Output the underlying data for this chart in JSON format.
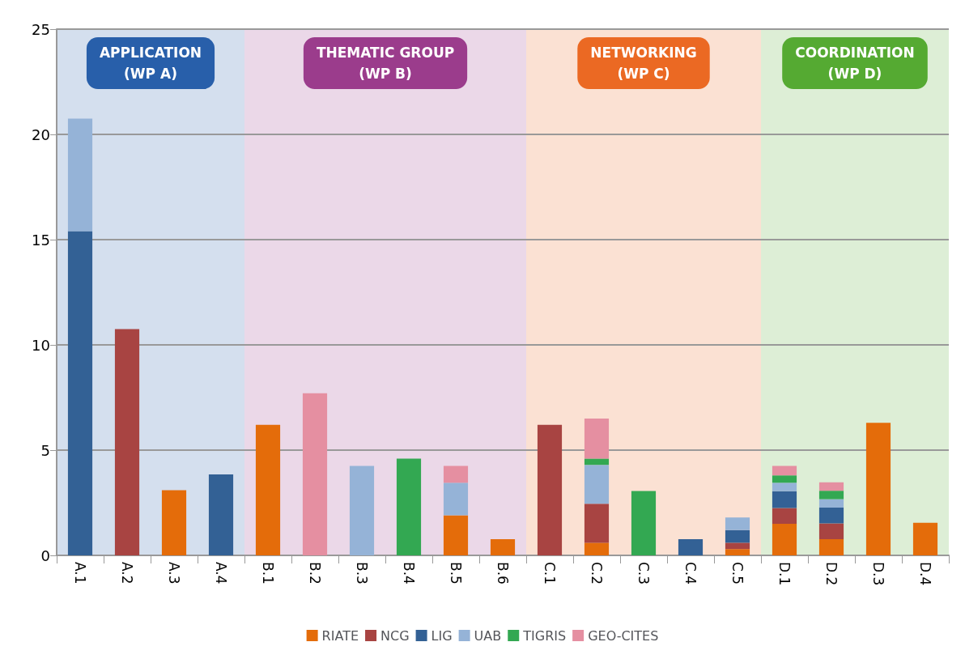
{
  "chart_data": {
    "type": "bar",
    "stacked": true,
    "categories": [
      "A.1",
      "A.2",
      "A.3",
      "A.4",
      "B.1",
      "B.2",
      "B.3",
      "B.4",
      "B.5",
      "B.6",
      "C.1",
      "C.2",
      "C.3",
      "C.4",
      "C.5",
      "D.1",
      "D.2",
      "D.3",
      "D.4"
    ],
    "series": [
      {
        "name": "RIATE",
        "color": "#e46c0a",
        "values": [
          null,
          null,
          3.1,
          null,
          6.2,
          null,
          null,
          null,
          1.9,
          0.77,
          null,
          0.6,
          null,
          null,
          0.3,
          1.5,
          0.77,
          6.3,
          1.55
        ]
      },
      {
        "name": "NCG",
        "color": "#a84442",
        "values": [
          null,
          10.75,
          null,
          null,
          null,
          null,
          null,
          null,
          null,
          null,
          6.2,
          1.85,
          null,
          null,
          0.3,
          0.75,
          0.75,
          null,
          null
        ]
      },
      {
        "name": "LIG",
        "color": "#336195",
        "values": [
          15.4,
          null,
          null,
          3.85,
          null,
          null,
          null,
          null,
          null,
          null,
          null,
          null,
          null,
          0.77,
          0.6,
          0.8,
          0.75,
          null,
          null
        ]
      },
      {
        "name": "UAB",
        "color": "#95b3d7",
        "values": [
          5.35,
          null,
          null,
          null,
          null,
          null,
          4.25,
          null,
          1.55,
          null,
          null,
          1.85,
          null,
          null,
          0.6,
          0.4,
          0.4,
          null,
          null
        ]
      },
      {
        "name": "TIGRIS",
        "color": "#33a852",
        "values": [
          null,
          null,
          null,
          null,
          null,
          null,
          null,
          4.6,
          null,
          null,
          null,
          0.3,
          3.06,
          null,
          null,
          0.35,
          0.4,
          null,
          null
        ]
      },
      {
        "name": "GEO-CITES",
        "color": "#e58fa1",
        "values": [
          null,
          null,
          null,
          null,
          null,
          7.7,
          null,
          null,
          0.8,
          null,
          null,
          1.9,
          null,
          null,
          null,
          0.45,
          0.4,
          null,
          null
        ]
      }
    ],
    "ylim": [
      0,
      25
    ],
    "yticks": [
      0,
      5,
      10,
      15,
      20,
      25
    ],
    "grid": "y",
    "legend": "bottom",
    "bands": [
      {
        "axis": "x",
        "from": "A.1",
        "to": "A.4",
        "label": "APPLICATION\n(WP A)",
        "color": "#d4dfee"
      },
      {
        "axis": "x",
        "from": "B.1",
        "to": "B.6",
        "label": "THEMATIC GROUP\n(WP B)",
        "color": "#ebd8e8"
      },
      {
        "axis": "x",
        "from": "C.1",
        "to": "C.5",
        "label": "NETWORKING\n(WP C)",
        "color": "#fbe1d3"
      },
      {
        "axis": "x",
        "from": "D.1",
        "to": "D.4",
        "label": "COORDINATION\n(WP D)",
        "color": "#ddeed6"
      }
    ]
  }
}
